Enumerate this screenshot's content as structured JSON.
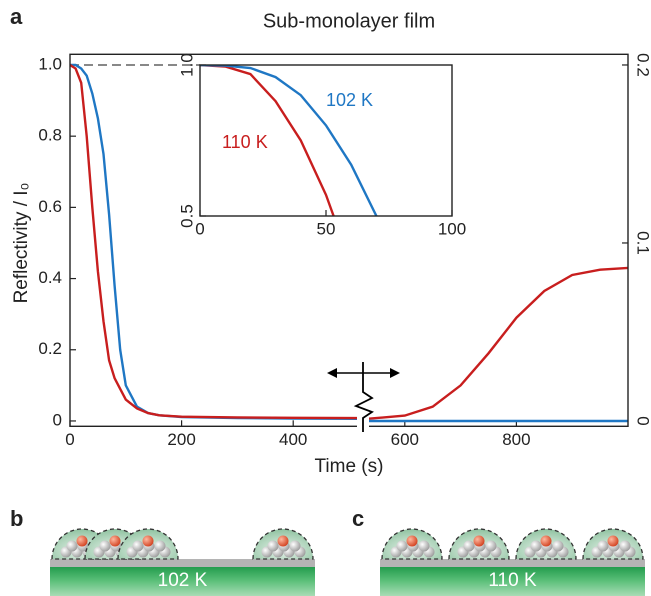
{
  "panel_labels": [
    "a",
    "b",
    "c"
  ],
  "chart_data": [
    {
      "type": "line",
      "title": "Sub-monolayer film",
      "xlabel": "Time (s)",
      "ylabel": "Reflectivity / I₀",
      "xlim": [
        0,
        1000
      ],
      "xticks": [
        0,
        200,
        400,
        600,
        800
      ],
      "ylim": [
        -0.015,
        1.03
      ],
      "yticks": [
        0,
        0.2,
        0.4,
        0.6,
        0.8,
        {
          "value": 1,
          "label": "1.0"
        }
      ],
      "y2lim": [
        -0.003,
        0.206
      ],
      "y2ticks": [
        0,
        0.1,
        0.2
      ],
      "series": [
        {
          "color": "#1f77c4",
          "x": [
            0,
            10,
            20,
            30,
            40,
            50,
            60,
            70,
            80,
            90,
            100,
            120,
            140,
            160,
            200,
            300,
            400,
            520
          ],
          "values": [
            1.0,
            1.0,
            0.99,
            0.97,
            0.92,
            0.85,
            0.75,
            0.58,
            0.38,
            0.2,
            0.1,
            0.04,
            0.022,
            0.016,
            0.011,
            0.008,
            0.007,
            0.006
          ]
        },
        {
          "color": "#c81e1e",
          "x": [
            0,
            10,
            20,
            30,
            40,
            50,
            60,
            70,
            80,
            90,
            100,
            120,
            140,
            160,
            200,
            300,
            400,
            520
          ],
          "values": [
            1.0,
            0.99,
            0.95,
            0.8,
            0.6,
            0.42,
            0.28,
            0.17,
            0.12,
            0.09,
            0.06,
            0.035,
            0.022,
            0.016,
            0.012,
            0.01,
            0.009,
            0.008
          ]
        },
        {
          "color": "#c81e1e",
          "axis": "y2",
          "x": [
            525,
            600,
            650,
            700,
            750,
            800,
            850,
            900,
            950,
            1000
          ],
          "values": [
            0.001,
            0.003,
            0.008,
            0.02,
            0.038,
            0.058,
            0.073,
            0.082,
            0.085,
            0.086
          ]
        },
        {
          "color": "#1f77c4",
          "axis": "y2",
          "x": [
            525,
            1000
          ],
          "values": [
            0,
            0
          ]
        }
      ]
    },
    {
      "type": "line",
      "xlim": [
        0,
        100
      ],
      "xticks": [
        0,
        50,
        100
      ],
      "ylim": [
        0.5,
        1.0
      ],
      "yticks": [
        0.5,
        {
          "value": 1,
          "label": "1.0"
        }
      ],
      "series": [
        {
          "name": "110 K",
          "color": "#c81e1e",
          "x": [
            0,
            10,
            20,
            30,
            40,
            50,
            53
          ],
          "values": [
            1.0,
            0.995,
            0.97,
            0.88,
            0.75,
            0.57,
            0.5
          ]
        },
        {
          "name": "102 K",
          "color": "#1f77c4",
          "x": [
            0,
            10,
            20,
            30,
            40,
            50,
            60,
            70
          ],
          "values": [
            1.0,
            0.998,
            0.99,
            0.96,
            0.9,
            0.8,
            0.67,
            0.5
          ]
        }
      ]
    }
  ],
  "illustrations": [
    {
      "substrate_label": "102 K"
    },
    {
      "substrate_label": "110 K"
    }
  ]
}
